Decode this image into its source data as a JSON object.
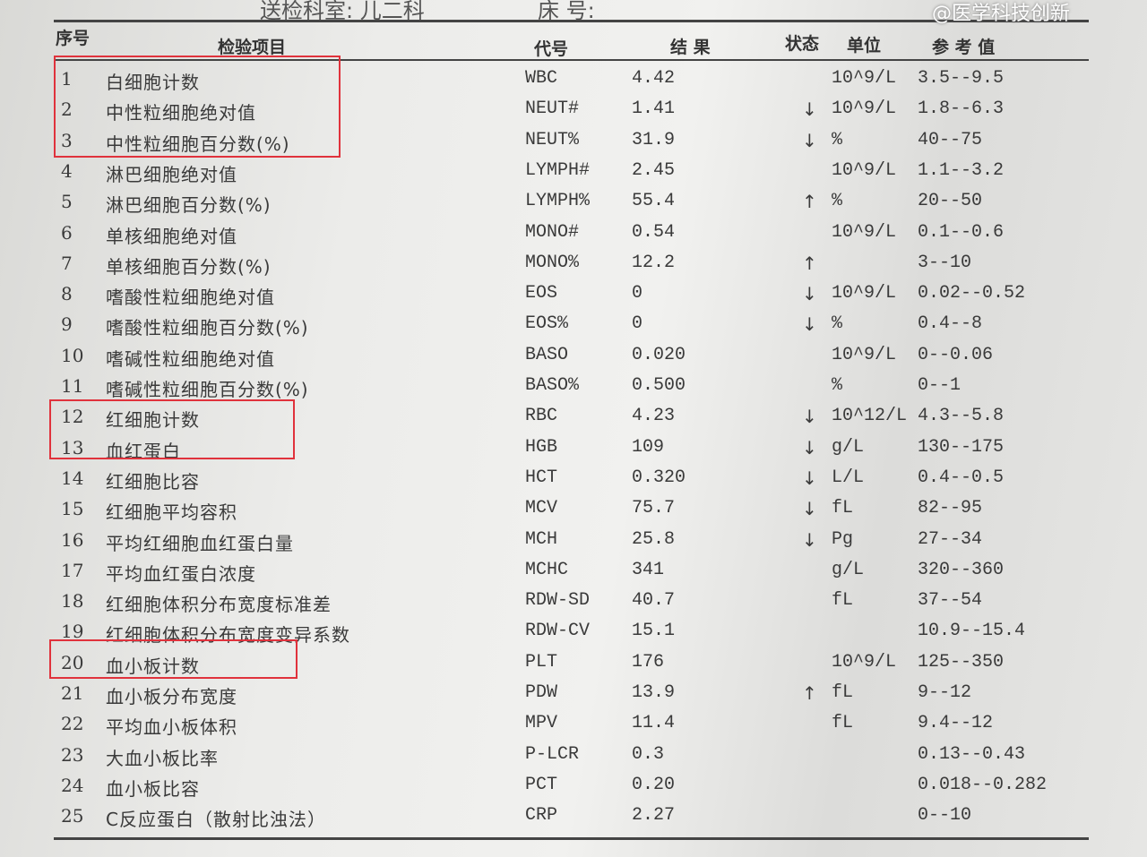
{
  "header_info": {
    "dept": "送检科室: 儿二科",
    "bed": "床 号:"
  },
  "columns": {
    "seq": "序号",
    "item": "检验项目",
    "code": "代号",
    "result": "结 果",
    "status": "状态",
    "unit": "单位",
    "ref": "参 考 值"
  },
  "highlight_color": "#e0323c",
  "rows": [
    {
      "n": "1",
      "name": "白细胞计数",
      "code": "WBC",
      "result": "4.42",
      "status": "",
      "unit": "10^9/L",
      "ref": "3.5--9.5"
    },
    {
      "n": "2",
      "name": "中性粒细胞绝对值",
      "code": "NEUT#",
      "result": "1.41",
      "status": "↓",
      "unit": "10^9/L",
      "ref": "1.8--6.3"
    },
    {
      "n": "3",
      "name": "中性粒细胞百分数(%)",
      "code": "NEUT%",
      "result": "31.9",
      "status": "↓",
      "unit": "%",
      "ref": "40--75"
    },
    {
      "n": "4",
      "name": "淋巴细胞绝对值",
      "code": "LYMPH#",
      "result": "2.45",
      "status": "",
      "unit": "10^9/L",
      "ref": "1.1--3.2"
    },
    {
      "n": "5",
      "name": "淋巴细胞百分数(%)",
      "code": "LYMPH%",
      "result": "55.4",
      "status": "↑",
      "unit": "%",
      "ref": "20--50"
    },
    {
      "n": "6",
      "name": "单核细胞绝对值",
      "code": "MONO#",
      "result": "0.54",
      "status": "",
      "unit": "10^9/L",
      "ref": "0.1--0.6"
    },
    {
      "n": "7",
      "name": "单核细胞百分数(%)",
      "code": "MONO%",
      "result": "12.2",
      "status": "↑",
      "unit": "",
      "ref": "3--10"
    },
    {
      "n": "8",
      "name": "嗜酸性粒细胞绝对值",
      "code": "EOS",
      "result": "0",
      "status": "↓",
      "unit": "10^9/L",
      "ref": "0.02--0.52"
    },
    {
      "n": "9",
      "name": "嗜酸性粒细胞百分数(%)",
      "code": "EOS%",
      "result": "0",
      "status": "↓",
      "unit": "%",
      "ref": "0.4--8"
    },
    {
      "n": "10",
      "name": "嗜碱性粒细胞绝对值",
      "code": "BASO",
      "result": "0.020",
      "status": "",
      "unit": "10^9/L",
      "ref": "0--0.06"
    },
    {
      "n": "11",
      "name": "嗜碱性粒细胞百分数(%)",
      "code": "BASO%",
      "result": "0.500",
      "status": "",
      "unit": "%",
      "ref": "0--1"
    },
    {
      "n": "12",
      "name": "红细胞计数",
      "code": "RBC",
      "result": "4.23",
      "status": "↓",
      "unit": "10^12/L",
      "ref": "4.3--5.8"
    },
    {
      "n": "13",
      "name": "血红蛋白",
      "code": "HGB",
      "result": "109",
      "status": "↓",
      "unit": "g/L",
      "ref": "130--175"
    },
    {
      "n": "14",
      "name": "红细胞比容",
      "code": "HCT",
      "result": "0.320",
      "status": "↓",
      "unit": "L/L",
      "ref": "0.4--0.5"
    },
    {
      "n": "15",
      "name": "红细胞平均容积",
      "code": "MCV",
      "result": "75.7",
      "status": "↓",
      "unit": "fL",
      "ref": "82--95"
    },
    {
      "n": "16",
      "name": "平均红细胞血红蛋白量",
      "code": "MCH",
      "result": "25.8",
      "status": "↓",
      "unit": "Pg",
      "ref": "27--34"
    },
    {
      "n": "17",
      "name": "平均血红蛋白浓度",
      "code": "MCHC",
      "result": "341",
      "status": "",
      "unit": "g/L",
      "ref": "320--360"
    },
    {
      "n": "18",
      "name": "红细胞体积分布宽度标准差",
      "code": "RDW-SD",
      "result": "40.7",
      "status": "",
      "unit": "fL",
      "ref": "37--54"
    },
    {
      "n": "19",
      "name": "红细胞体积分布宽度变异系数",
      "code": "RDW-CV",
      "result": "15.1",
      "status": "",
      "unit": "",
      "ref": "10.9--15.4"
    },
    {
      "n": "20",
      "name": "血小板计数",
      "code": "PLT",
      "result": "176",
      "status": "",
      "unit": "10^9/L",
      "ref": "125--350"
    },
    {
      "n": "21",
      "name": "血小板分布宽度",
      "code": "PDW",
      "result": "13.9",
      "status": "↑",
      "unit": "fL",
      "ref": "9--12"
    },
    {
      "n": "22",
      "name": "平均血小板体积",
      "code": "MPV",
      "result": "11.4",
      "status": "",
      "unit": "fL",
      "ref": "9.4--12"
    },
    {
      "n": "23",
      "name": "大血小板比率",
      "code": "P-LCR",
      "result": "0.3",
      "status": "",
      "unit": "",
      "ref": "0.13--0.43"
    },
    {
      "n": "24",
      "name": "血小板比容",
      "code": "PCT",
      "result": "0.20",
      "status": "",
      "unit": "",
      "ref": "0.018--0.282"
    },
    {
      "n": "25",
      "name": "C反应蛋白（散射比浊法）",
      "code": "CRP",
      "result": "2.27",
      "status": "",
      "unit": "",
      "ref": "0--10"
    }
  ],
  "watermark": "@医学科技创新"
}
